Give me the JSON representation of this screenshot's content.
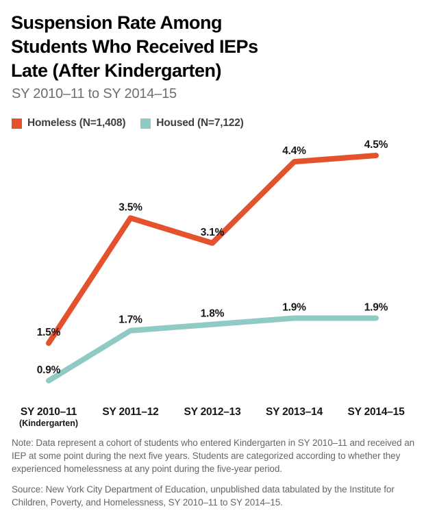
{
  "title_lines": [
    "Suspension Rate Among",
    "Students Who Received IEPs",
    "Late (After Kindergarten)"
  ],
  "subtitle": "SY 2010–11 to SY 2014–15",
  "legend": [
    {
      "label": "Homeless (N=1,408)",
      "color": "#E4522D"
    },
    {
      "label": "Housed (N=7,122)",
      "color": "#8FCBC4"
    }
  ],
  "chart_data": {
    "type": "line",
    "title": "Suspension Rate Among Students Who Received IEPs Late (After Kindergarten)",
    "subtitle": "SY 2010–11 to SY 2014–15",
    "categories": [
      "SY 2010–11",
      "SY 2011–12",
      "SY 2012–13",
      "SY 2013–14",
      "SY 2014–15"
    ],
    "category_sublabels": [
      "(Kindergarten)",
      "",
      "",
      "",
      ""
    ],
    "series": [
      {
        "name": "Homeless (N=1,408)",
        "color": "#E4522D",
        "values": [
          1.5,
          3.5,
          3.1,
          4.4,
          4.5
        ],
        "labels": [
          "1.5%",
          "3.5%",
          "3.1%",
          "4.4%",
          "4.5%"
        ]
      },
      {
        "name": "Housed (N=7,122)",
        "color": "#8FCBC4",
        "values": [
          0.9,
          1.7,
          1.8,
          1.9,
          1.9
        ],
        "labels": [
          "0.9%",
          "1.7%",
          "1.8%",
          "1.9%",
          "1.9%"
        ]
      }
    ],
    "xlabel": "",
    "ylabel": "",
    "ylim": [
      0,
      5
    ],
    "grid": false,
    "axis_lines": false,
    "data_labels": true,
    "legend_position": "top"
  },
  "note": "Note: Data represent a cohort of students who entered Kindergarten in SY 2010–11 and received an IEP at some point during the next five years. Students are categorized according to whether they experienced homelessness at any point during the five-year period.",
  "source": "Source: New York City Department of Education, unpublished data tabulated by the Institute for Children, Poverty, and Homelessness, SY 2010–11 to SY 2014–15."
}
